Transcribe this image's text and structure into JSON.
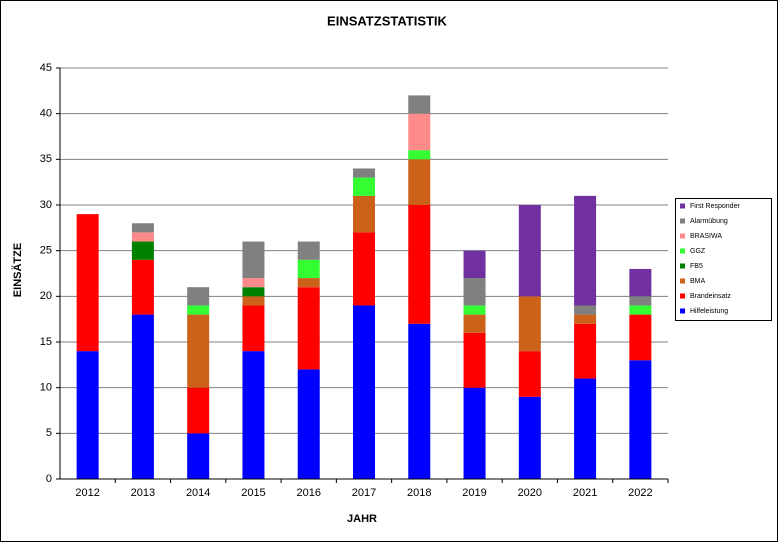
{
  "chart_data": {
    "type": "stacked-bar",
    "title": "EINSATZSTATISTIK",
    "x_label": "JAHR",
    "y_label": "EINSÄTZE",
    "categories": [
      "2012",
      "2013",
      "2014",
      "2015",
      "2016",
      "2017",
      "2018",
      "2019",
      "2020",
      "2021",
      "2022"
    ],
    "series": [
      {
        "name": "Hilfeleistung",
        "color": "#0000ff",
        "values": [
          14,
          18,
          5,
          14,
          12,
          19,
          17,
          10,
          9,
          11,
          13
        ]
      },
      {
        "name": "Brandeinsatz",
        "color": "#ff0000",
        "values": [
          15,
          6,
          5,
          5,
          9,
          8,
          13,
          6,
          5,
          6,
          5
        ]
      },
      {
        "name": "BMA",
        "color": "#cc6119",
        "values": [
          0,
          0,
          8,
          1,
          1,
          4,
          5,
          2,
          6,
          1,
          0
        ]
      },
      {
        "name": "FB5",
        "color": "#008000",
        "values": [
          0,
          2,
          0,
          1,
          0,
          0,
          0,
          0,
          0,
          0,
          0
        ]
      },
      {
        "name": "GGZ",
        "color": "#33ff33",
        "values": [
          0,
          0,
          1,
          0,
          2,
          2,
          1,
          1,
          0,
          0,
          1
        ]
      },
      {
        "name": "BRASIWA",
        "color": "#ff8a8a",
        "values": [
          0,
          1,
          0,
          1,
          0,
          0,
          4,
          0,
          0,
          0,
          0
        ]
      },
      {
        "name": "Alarmübung",
        "color": "#808080",
        "values": [
          0,
          1,
          2,
          4,
          2,
          1,
          2,
          3,
          0,
          1,
          1
        ]
      },
      {
        "name": "First Responder",
        "color": "#7030a0",
        "values": [
          0,
          0,
          0,
          0,
          0,
          0,
          0,
          3,
          10,
          12,
          3
        ]
      }
    ],
    "ylim": [
      0,
      45
    ],
    "yticks": [
      0,
      5,
      10,
      15,
      20,
      25,
      30,
      35,
      40,
      45
    ],
    "grid": true
  }
}
